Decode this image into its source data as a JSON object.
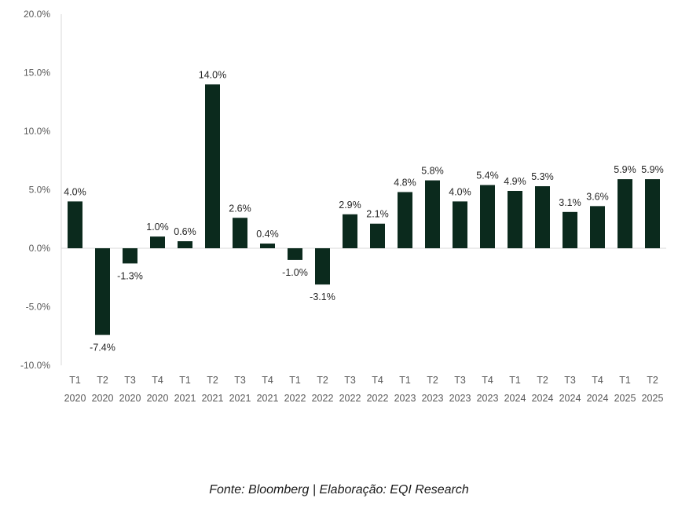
{
  "chart_data": {
    "type": "bar",
    "title": "",
    "xlabel": "",
    "ylabel": "",
    "ylim": [
      -10,
      20
    ],
    "yticks": [
      -10,
      -5,
      0,
      5,
      10,
      15,
      20
    ],
    "ytick_labels": [
      "-10.0%",
      "-5.0%",
      "0.0%",
      "5.0%",
      "10.0%",
      "15.0%",
      "20.0%"
    ],
    "categories": [
      {
        "quarter": "T1",
        "year": "2020"
      },
      {
        "quarter": "T2",
        "year": "2020"
      },
      {
        "quarter": "T3",
        "year": "2020"
      },
      {
        "quarter": "T4",
        "year": "2020"
      },
      {
        "quarter": "T1",
        "year": "2021"
      },
      {
        "quarter": "T2",
        "year": "2021"
      },
      {
        "quarter": "T3",
        "year": "2021"
      },
      {
        "quarter": "T4",
        "year": "2021"
      },
      {
        "quarter": "T1",
        "year": "2022"
      },
      {
        "quarter": "T2",
        "year": "2022"
      },
      {
        "quarter": "T3",
        "year": "2022"
      },
      {
        "quarter": "T4",
        "year": "2022"
      },
      {
        "quarter": "T1",
        "year": "2023"
      },
      {
        "quarter": "T2",
        "year": "2023"
      },
      {
        "quarter": "T3",
        "year": "2023"
      },
      {
        "quarter": "T4",
        "year": "2023"
      },
      {
        "quarter": "T1",
        "year": "2024"
      },
      {
        "quarter": "T2",
        "year": "2024"
      },
      {
        "quarter": "T3",
        "year": "2024"
      },
      {
        "quarter": "T4",
        "year": "2024"
      },
      {
        "quarter": "T1",
        "year": "2025"
      },
      {
        "quarter": "T2",
        "year": "2025"
      }
    ],
    "values": [
      4.0,
      -7.4,
      -1.3,
      1.0,
      0.6,
      14.0,
      2.6,
      0.4,
      -1.0,
      -3.1,
      2.9,
      2.1,
      4.8,
      5.8,
      4.0,
      5.4,
      4.9,
      5.3,
      3.1,
      3.6,
      5.9,
      5.9
    ],
    "data_labels": [
      "4.0%",
      "-7.4%",
      "-1.3%",
      "1.0%",
      "0.6%",
      "14.0%",
      "2.6%",
      "0.4%",
      "-1.0%",
      "-3.1%",
      "2.9%",
      "2.1%",
      "4.8%",
      "5.8%",
      "4.0%",
      "5.4%",
      "4.9%",
      "5.3%",
      "3.1%",
      "3.6%",
      "5.9%",
      "5.9%"
    ],
    "bar_color": "#0b2a1d",
    "axis_color": "#d9d9d9",
    "grid": false,
    "legend": "none"
  },
  "source_text": "Fonte: Bloomberg | Elaboração: EQI Research"
}
